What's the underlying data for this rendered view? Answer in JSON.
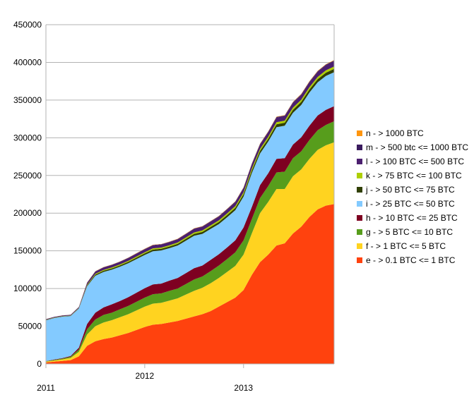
{
  "chart_data": {
    "type": "area",
    "stacked": true,
    "title": "",
    "xlabel": "",
    "ylabel": "",
    "ylim": [
      0,
      450000
    ],
    "yticks": [
      "0",
      "50000",
      "100000",
      "150000",
      "200000",
      "250000",
      "300000",
      "350000",
      "400000",
      "450000"
    ],
    "xticks": [
      "2011",
      "2012",
      "2013"
    ],
    "grid": "horizontal",
    "legend_position": "right",
    "x_start": "2011-01",
    "x_end": "2013-12",
    "x": [
      0,
      1,
      2,
      3,
      4,
      5,
      6,
      7,
      8,
      9,
      10,
      11,
      12,
      13,
      14,
      15,
      16,
      17,
      18,
      19,
      20,
      21,
      22,
      23,
      24,
      25,
      26,
      27,
      28,
      29,
      30,
      31,
      32,
      33,
      34,
      35
    ],
    "series": [
      {
        "name": "e - > 0.1 BTC <= 1 BTC",
        "color": "#ff420e",
        "values": [
          2000,
          3000,
          4000,
          5000,
          10000,
          24000,
          30000,
          33000,
          35000,
          38000,
          41000,
          45000,
          49000,
          52000,
          53000,
          55000,
          57000,
          60000,
          63000,
          66000,
          70000,
          76000,
          82000,
          88000,
          98000,
          118000,
          135000,
          145000,
          157000,
          160000,
          173000,
          182000,
          195000,
          205000,
          210000,
          212000
        ]
      },
      {
        "name": "f - > 1 BTC <= 5 BTC",
        "color": "#ffd320",
        "values": [
          1000,
          1500,
          2000,
          3000,
          6000,
          15000,
          20000,
          22000,
          23000,
          24000,
          25000,
          26000,
          27000,
          28000,
          28000,
          29000,
          30000,
          32000,
          34000,
          35000,
          37000,
          38000,
          40000,
          42000,
          47000,
          55000,
          65000,
          70000,
          75000,
          72000,
          76000,
          76000,
          77000,
          79000,
          80000,
          82000
        ]
      },
      {
        "name": "g - > 5 BTC <= 10 BTC",
        "color": "#579d1c",
        "values": [
          500,
          800,
          1000,
          1500,
          3000,
          7000,
          9000,
          10000,
          10000,
          10500,
          11000,
          11500,
          12000,
          12500,
          12500,
          13000,
          13000,
          14000,
          15000,
          15000,
          16000,
          16500,
          17000,
          18000,
          19000,
          19000,
          20000,
          21000,
          22000,
          23000,
          24000,
          24000,
          25000,
          26000,
          27000,
          28000
        ]
      },
      {
        "name": "h - > 10 BTC <= 25 BTC",
        "color": "#7e0021",
        "values": [
          300,
          500,
          700,
          1000,
          2500,
          7000,
          9000,
          10000,
          11000,
          11000,
          11500,
          12000,
          12500,
          13000,
          13000,
          13500,
          14000,
          14500,
          15000,
          14500,
          15000,
          15000,
          15500,
          16000,
          17000,
          16000,
          17000,
          17000,
          18000,
          18000,
          18000,
          18500,
          19000,
          19500,
          20000,
          20000
        ]
      },
      {
        "name": "i - > 25 BTC <= 50 BTC",
        "color": "#83caff",
        "values": [
          54000,
          55000,
          55000,
          53000,
          52000,
          50000,
          49000,
          47000,
          46000,
          45500,
          45000,
          44500,
          44000,
          44000,
          44000,
          43000,
          43000,
          43000,
          43000,
          42000,
          41000,
          40000,
          40000,
          40000,
          41000,
          45000,
          42000,
          42000,
          42000,
          43000,
          42000,
          43000,
          44000,
          44000,
          45000,
          45000
        ]
      },
      {
        "name": "j - > 50 BTC <= 75 BTC",
        "color": "#314004",
        "values": [
          400,
          400,
          400,
          400,
          500,
          1200,
          1500,
          1600,
          1700,
          1800,
          1900,
          2000,
          2100,
          2200,
          2200,
          2300,
          2300,
          2400,
          2500,
          2600,
          2700,
          2800,
          2900,
          3000,
          3200,
          3500,
          3600,
          3700,
          3800,
          3900,
          4000,
          4000,
          4100,
          4200,
          4300,
          4400
        ]
      },
      {
        "name": "k - > 75 BTC <= 100 BTC",
        "color": "#aecf00",
        "values": [
          300,
          300,
          300,
          300,
          400,
          800,
          1000,
          1100,
          1200,
          1200,
          1300,
          1400,
          1500,
          1600,
          1600,
          1600,
          1700,
          1800,
          1900,
          2000,
          2000,
          2100,
          2200,
          2300,
          2400,
          2500,
          2600,
          2700,
          2800,
          2800,
          2900,
          2900,
          3000,
          3000,
          3100,
          3200
        ]
      },
      {
        "name": "l - > 100 BTC <= 500 BTC",
        "color": "#4b1f6f",
        "values": [
          800,
          800,
          800,
          900,
          1000,
          2500,
          3000,
          3200,
          3300,
          3400,
          3600,
          3800,
          3900,
          4000,
          4000,
          4100,
          4200,
          4400,
          4600,
          4700,
          4900,
          5000,
          5200,
          5400,
          5600,
          5700,
          5800,
          6000,
          6200,
          6100,
          6300,
          6400,
          6500,
          6700,
          6800,
          7000
        ]
      },
      {
        "name": "m - > 500 btc <= 1000 BTC",
        "color": "#3a1b5e",
        "values": [
          100,
          100,
          100,
          100,
          150,
          300,
          350,
          400,
          400,
          400,
          450,
          450,
          500,
          500,
          500,
          500,
          550,
          550,
          600,
          600,
          600,
          650,
          650,
          700,
          700,
          750,
          750,
          800,
          800,
          800,
          850,
          850,
          900,
          900,
          900,
          950
        ]
      },
      {
        "name": "n - > 1000 BTC",
        "color": "#ff950e",
        "values": [
          100,
          100,
          100,
          100,
          100,
          200,
          200,
          250,
          250,
          250,
          250,
          300,
          300,
          300,
          300,
          300,
          300,
          350,
          350,
          350,
          350,
          350,
          400,
          400,
          400,
          400,
          450,
          450,
          450,
          450,
          450,
          500,
          500,
          500,
          500,
          500
        ]
      }
    ]
  }
}
